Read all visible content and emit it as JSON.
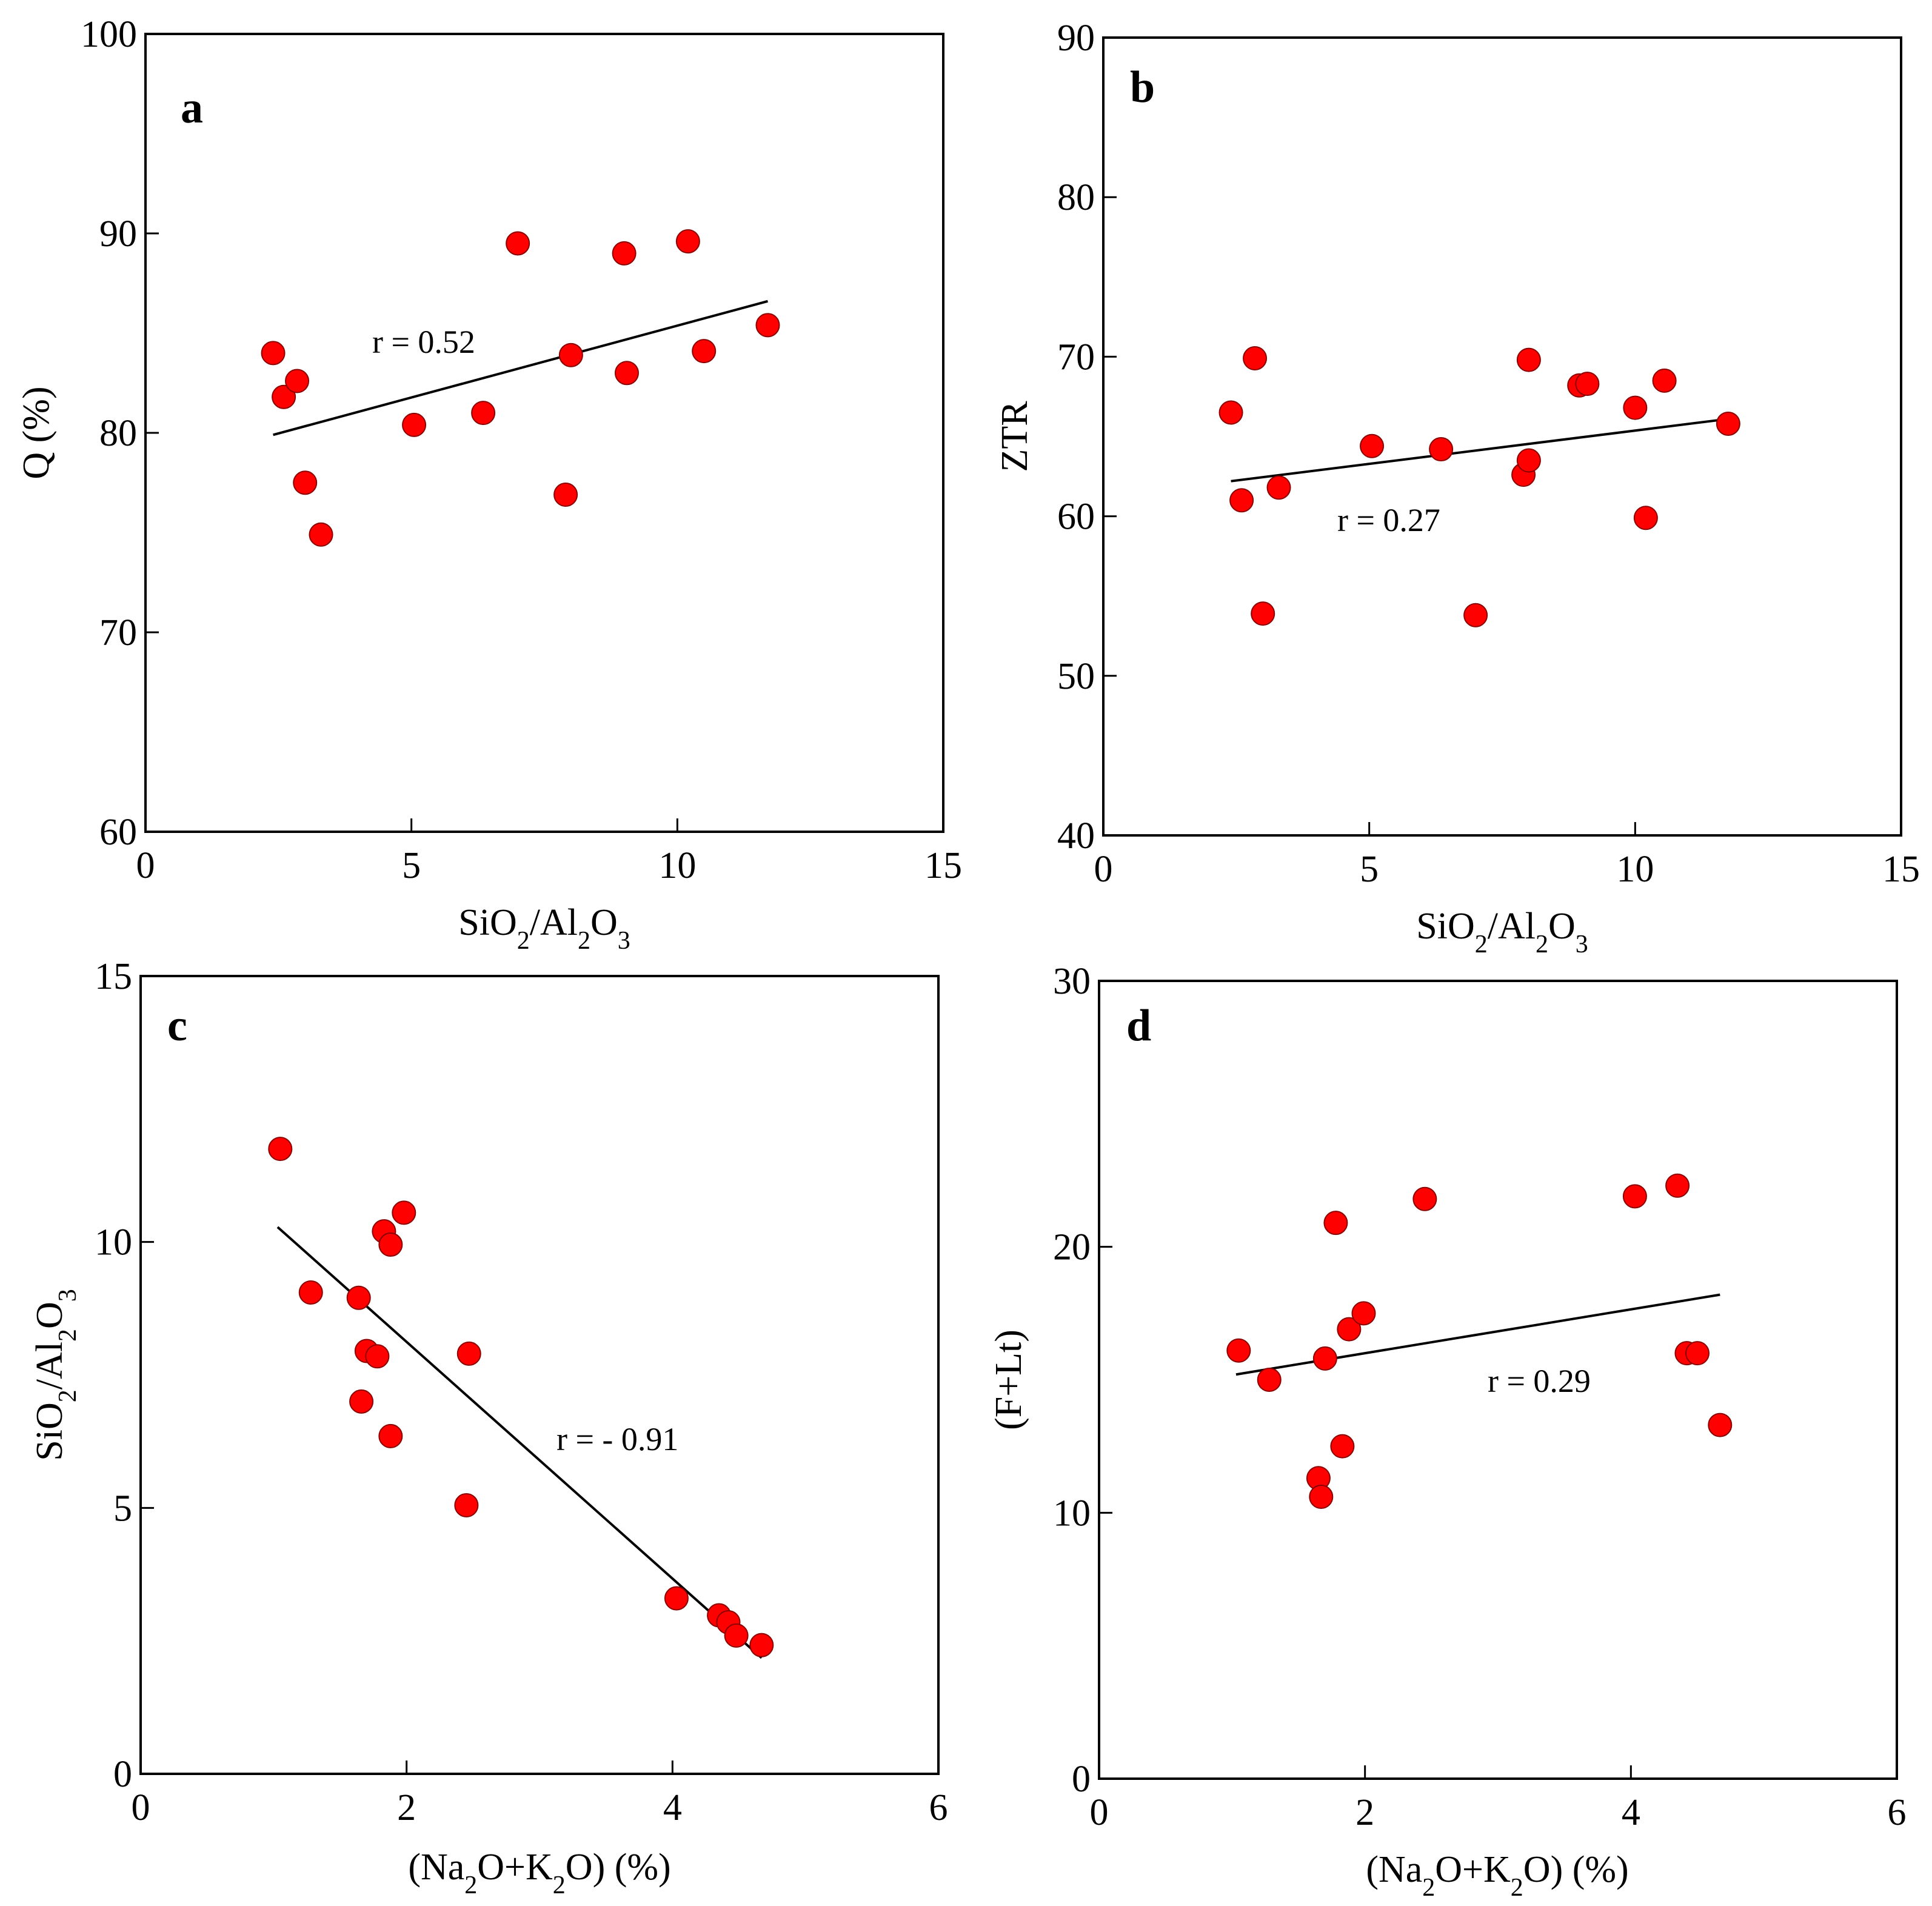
{
  "figure": {
    "marker_color": "#ff0000",
    "marker_stroke": "#8b0000",
    "line_color": "#000000"
  },
  "chart_data": [
    {
      "type": "scatter",
      "panel": "a",
      "xlim": [
        0,
        15
      ],
      "ylim": [
        60,
        100
      ],
      "xticks": [
        "0",
        "5",
        "10",
        "15"
      ],
      "yticks": [
        "60",
        "70",
        "80",
        "90",
        "100"
      ],
      "xlabel": "SiO2/Al2O3",
      "ylabel": "Q (%)",
      "annotation": "r = 0.52",
      "points": [
        {
          "x": 2.4,
          "y": 84.0
        },
        {
          "x": 2.6,
          "y": 81.8
        },
        {
          "x": 2.85,
          "y": 82.6
        },
        {
          "x": 3.0,
          "y": 77.5
        },
        {
          "x": 3.3,
          "y": 74.9
        },
        {
          "x": 5.05,
          "y": 80.4
        },
        {
          "x": 6.35,
          "y": 81.0
        },
        {
          "x": 7.0,
          "y": 89.5
        },
        {
          "x": 7.9,
          "y": 76.9
        },
        {
          "x": 8.0,
          "y": 83.9
        },
        {
          "x": 9.0,
          "y": 89.0
        },
        {
          "x": 9.05,
          "y": 83.0
        },
        {
          "x": 10.2,
          "y": 89.6
        },
        {
          "x": 10.5,
          "y": 84.1
        },
        {
          "x": 11.7,
          "y": 85.4
        }
      ],
      "trendline": [
        {
          "x": 2.4,
          "y": 79.9
        },
        {
          "x": 11.7,
          "y": 86.6
        }
      ]
    },
    {
      "type": "scatter",
      "panel": "b",
      "xlim": [
        0,
        15
      ],
      "ylim": [
        40,
        90
      ],
      "xticks": [
        "0",
        "5",
        "10",
        "15"
      ],
      "yticks": [
        "40",
        "50",
        "60",
        "70",
        "80",
        "90"
      ],
      "xlabel": "SiO2/Al2O3",
      "ylabel": "ZTR",
      "annotation": "r = 0.27",
      "points": [
        {
          "x": 2.4,
          "y": 66.5
        },
        {
          "x": 2.6,
          "y": 61.0
        },
        {
          "x": 2.85,
          "y": 69.9
        },
        {
          "x": 3.0,
          "y": 53.9
        },
        {
          "x": 3.3,
          "y": 61.8
        },
        {
          "x": 5.05,
          "y": 64.4
        },
        {
          "x": 6.35,
          "y": 64.2
        },
        {
          "x": 7.0,
          "y": 53.8
        },
        {
          "x": 7.9,
          "y": 62.6
        },
        {
          "x": 8.0,
          "y": 69.8
        },
        {
          "x": 8.0,
          "y": 63.5
        },
        {
          "x": 8.95,
          "y": 68.2
        },
        {
          "x": 9.1,
          "y": 68.3
        },
        {
          "x": 10.0,
          "y": 66.8
        },
        {
          "x": 10.2,
          "y": 59.9
        },
        {
          "x": 10.55,
          "y": 68.5
        },
        {
          "x": 11.75,
          "y": 65.8
        }
      ],
      "trendline": [
        {
          "x": 2.4,
          "y": 62.2
        },
        {
          "x": 11.75,
          "y": 66.1
        }
      ]
    },
    {
      "type": "scatter",
      "panel": "c",
      "xlim": [
        0,
        6
      ],
      "ylim": [
        0,
        15
      ],
      "xticks": [
        "0",
        "2",
        "4",
        "6"
      ],
      "yticks": [
        "0",
        "5",
        "10",
        "15"
      ],
      "xlabel": "(Na2O+K2O) (%)",
      "ylabel": "SiO2/Al2O3",
      "annotation": "r = - 0.91",
      "points": [
        {
          "x": 1.05,
          "y": 11.75
        },
        {
          "x": 1.28,
          "y": 9.05
        },
        {
          "x": 1.64,
          "y": 8.95
        },
        {
          "x": 1.66,
          "y": 7.0
        },
        {
          "x": 1.7,
          "y": 7.95
        },
        {
          "x": 1.78,
          "y": 7.85
        },
        {
          "x": 1.83,
          "y": 10.2
        },
        {
          "x": 1.88,
          "y": 9.95
        },
        {
          "x": 1.88,
          "y": 6.35
        },
        {
          "x": 1.98,
          "y": 10.55
        },
        {
          "x": 2.45,
          "y": 5.05
        },
        {
          "x": 2.47,
          "y": 7.9
        },
        {
          "x": 4.03,
          "y": 3.3
        },
        {
          "x": 4.35,
          "y": 2.98
        },
        {
          "x": 4.42,
          "y": 2.85
        },
        {
          "x": 4.48,
          "y": 2.6
        },
        {
          "x": 4.67,
          "y": 2.42
        }
      ],
      "trendline": [
        {
          "x": 1.03,
          "y": 10.28
        },
        {
          "x": 4.67,
          "y": 2.18
        }
      ]
    },
    {
      "type": "scatter",
      "panel": "d",
      "xlim": [
        0,
        6
      ],
      "ylim": [
        0,
        30
      ],
      "xticks": [
        "0",
        "2",
        "4",
        "6"
      ],
      "yticks": [
        "0",
        "10",
        "20",
        "30"
      ],
      "xlabel": "(Na2O+K2O) (%)",
      "ylabel": "(F+Lt)",
      "annotation": "r = 0.29",
      "points": [
        {
          "x": 1.05,
          "y": 16.1
        },
        {
          "x": 1.28,
          "y": 15.0
        },
        {
          "x": 1.65,
          "y": 11.3
        },
        {
          "x": 1.67,
          "y": 10.6
        },
        {
          "x": 1.7,
          "y": 15.8
        },
        {
          "x": 1.78,
          "y": 20.9
        },
        {
          "x": 1.83,
          "y": 12.5
        },
        {
          "x": 1.88,
          "y": 16.9
        },
        {
          "x": 1.99,
          "y": 17.5
        },
        {
          "x": 2.45,
          "y": 21.8
        },
        {
          "x": 4.03,
          "y": 21.9
        },
        {
          "x": 4.35,
          "y": 22.3
        },
        {
          "x": 4.42,
          "y": 16.0
        },
        {
          "x": 4.5,
          "y": 16.0
        },
        {
          "x": 4.67,
          "y": 13.3
        }
      ],
      "trendline": [
        {
          "x": 1.03,
          "y": 15.2
        },
        {
          "x": 4.67,
          "y": 18.2
        }
      ]
    }
  ]
}
